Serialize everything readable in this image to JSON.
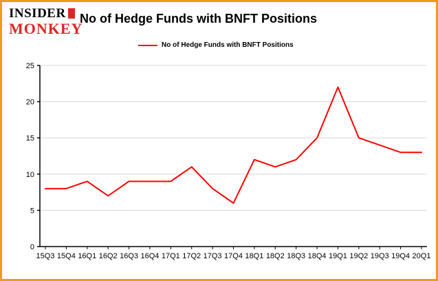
{
  "brand": {
    "line1": "INSIDER",
    "line2": "MONKEY"
  },
  "header": {
    "title": "No of Hedge Funds with BNFT Positions"
  },
  "legend": {
    "label": "No of Hedge Funds with BNFT Positions"
  },
  "colors": {
    "line": "#ff0000",
    "border": "#f2991d",
    "grid": "#d8d8d8",
    "axis": "#000000",
    "brand_red": "#e02425",
    "brand_black": "#000000"
  },
  "chart_data": {
    "type": "line",
    "categories": [
      "15Q3",
      "15Q4",
      "16Q1",
      "16Q2",
      "16Q3",
      "16Q4",
      "17Q1",
      "17Q2",
      "17Q3",
      "17Q4",
      "18Q1",
      "18Q2",
      "18Q3",
      "18Q4",
      "19Q1",
      "19Q2",
      "19Q3",
      "19Q4",
      "20Q1"
    ],
    "series": [
      {
        "name": "No of Hedge Funds with BNFT Positions",
        "values": [
          8,
          8,
          9,
          7,
          9,
          9,
          9,
          11,
          8,
          6,
          12,
          11,
          12,
          15,
          22,
          15,
          14,
          13,
          13
        ]
      }
    ],
    "title": "No of Hedge Funds with BNFT Positions",
    "xlabel": "",
    "ylabel": "",
    "ylim": [
      0,
      25
    ],
    "yticks": [
      0,
      5,
      10,
      15,
      20,
      25
    ],
    "grid": true,
    "legend_position": "top-left"
  }
}
